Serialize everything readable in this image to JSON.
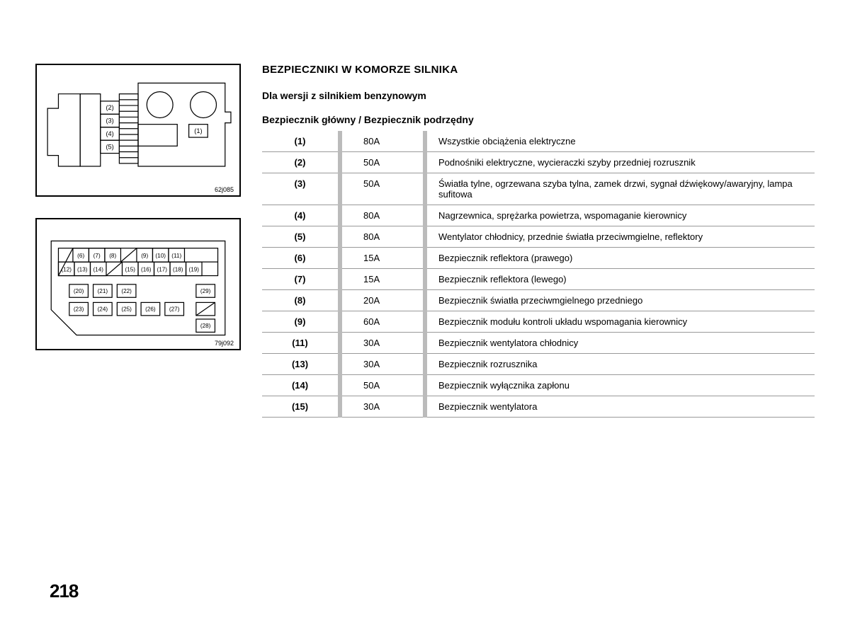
{
  "page_number": "218",
  "headings": {
    "h1": "BEZPIECZNIKI W KOMORZE SILNIKA",
    "h2": "Dla wersji z silnikiem benzynowym",
    "h3": "Bezpiecznik główny / Bezpiecznik podrzędny"
  },
  "figures": {
    "top_caption": "62j085",
    "bottom_caption": "79j092",
    "top_labels": [
      "(2)",
      "(3)",
      "(4)",
      "(5)",
      "(1)"
    ],
    "bottom_row1": [
      "(6)",
      "(7)",
      "(8)",
      "(9)",
      "(10)",
      "(11)"
    ],
    "bottom_row2": [
      "(12)",
      "(13)",
      "(14)",
      "(15)",
      "(16)",
      "(17)",
      "(18)",
      "(19)"
    ],
    "bottom_row3": [
      "(20)",
      "(21)",
      "(22)",
      "(29)"
    ],
    "bottom_row4": [
      "(23)",
      "(24)",
      "(25)",
      "(26)",
      "(27)"
    ],
    "bottom_row5": [
      "(28)"
    ]
  },
  "fuse_table": {
    "rows": [
      {
        "num": "(1)",
        "amp": "80A",
        "desc": "Wszystkie obciążenia elektryczne"
      },
      {
        "num": "(2)",
        "amp": "50A",
        "desc": "Podnośniki elektryczne, wycieraczki szyby przedniej rozrusznik"
      },
      {
        "num": "(3)",
        "amp": "50A",
        "desc": "Światła tylne, ogrzewana szyba tylna, zamek drzwi, sygnał dźwiękowy/awaryjny, lampa sufitowa"
      },
      {
        "num": "(4)",
        "amp": "80A",
        "desc": "Nagrzewnica, sprężarka powietrza, wspomaganie kierownicy"
      },
      {
        "num": "(5)",
        "amp": "80A",
        "desc": "Wentylator chłodnicy, przednie światła przeciwmgielne, reflektory"
      },
      {
        "num": "(6)",
        "amp": "15A",
        "desc": "Bezpiecznik reflektora (prawego)"
      },
      {
        "num": "(7)",
        "amp": "15A",
        "desc": "Bezpiecznik reflektora (lewego)"
      },
      {
        "num": "(8)",
        "amp": "20A",
        "desc": "Bezpiecznik światła przeciwmgielnego przedniego"
      },
      {
        "num": "(9)",
        "amp": "60A",
        "desc": "Bezpiecznik modułu kontroli układu wspomagania kierownicy"
      },
      {
        "num": "(11)",
        "amp": "30A",
        "desc": "Bezpiecznik wentylatora chłodnicy"
      },
      {
        "num": "(13)",
        "amp": "30A",
        "desc": "Bezpiecznik rozrusznika"
      },
      {
        "num": "(14)",
        "amp": "50A",
        "desc": "Bezpiecznik wyłącznika zapłonu"
      },
      {
        "num": "(15)",
        "amp": "30A",
        "desc": "Bezpiecznik wentylatora"
      }
    ]
  }
}
